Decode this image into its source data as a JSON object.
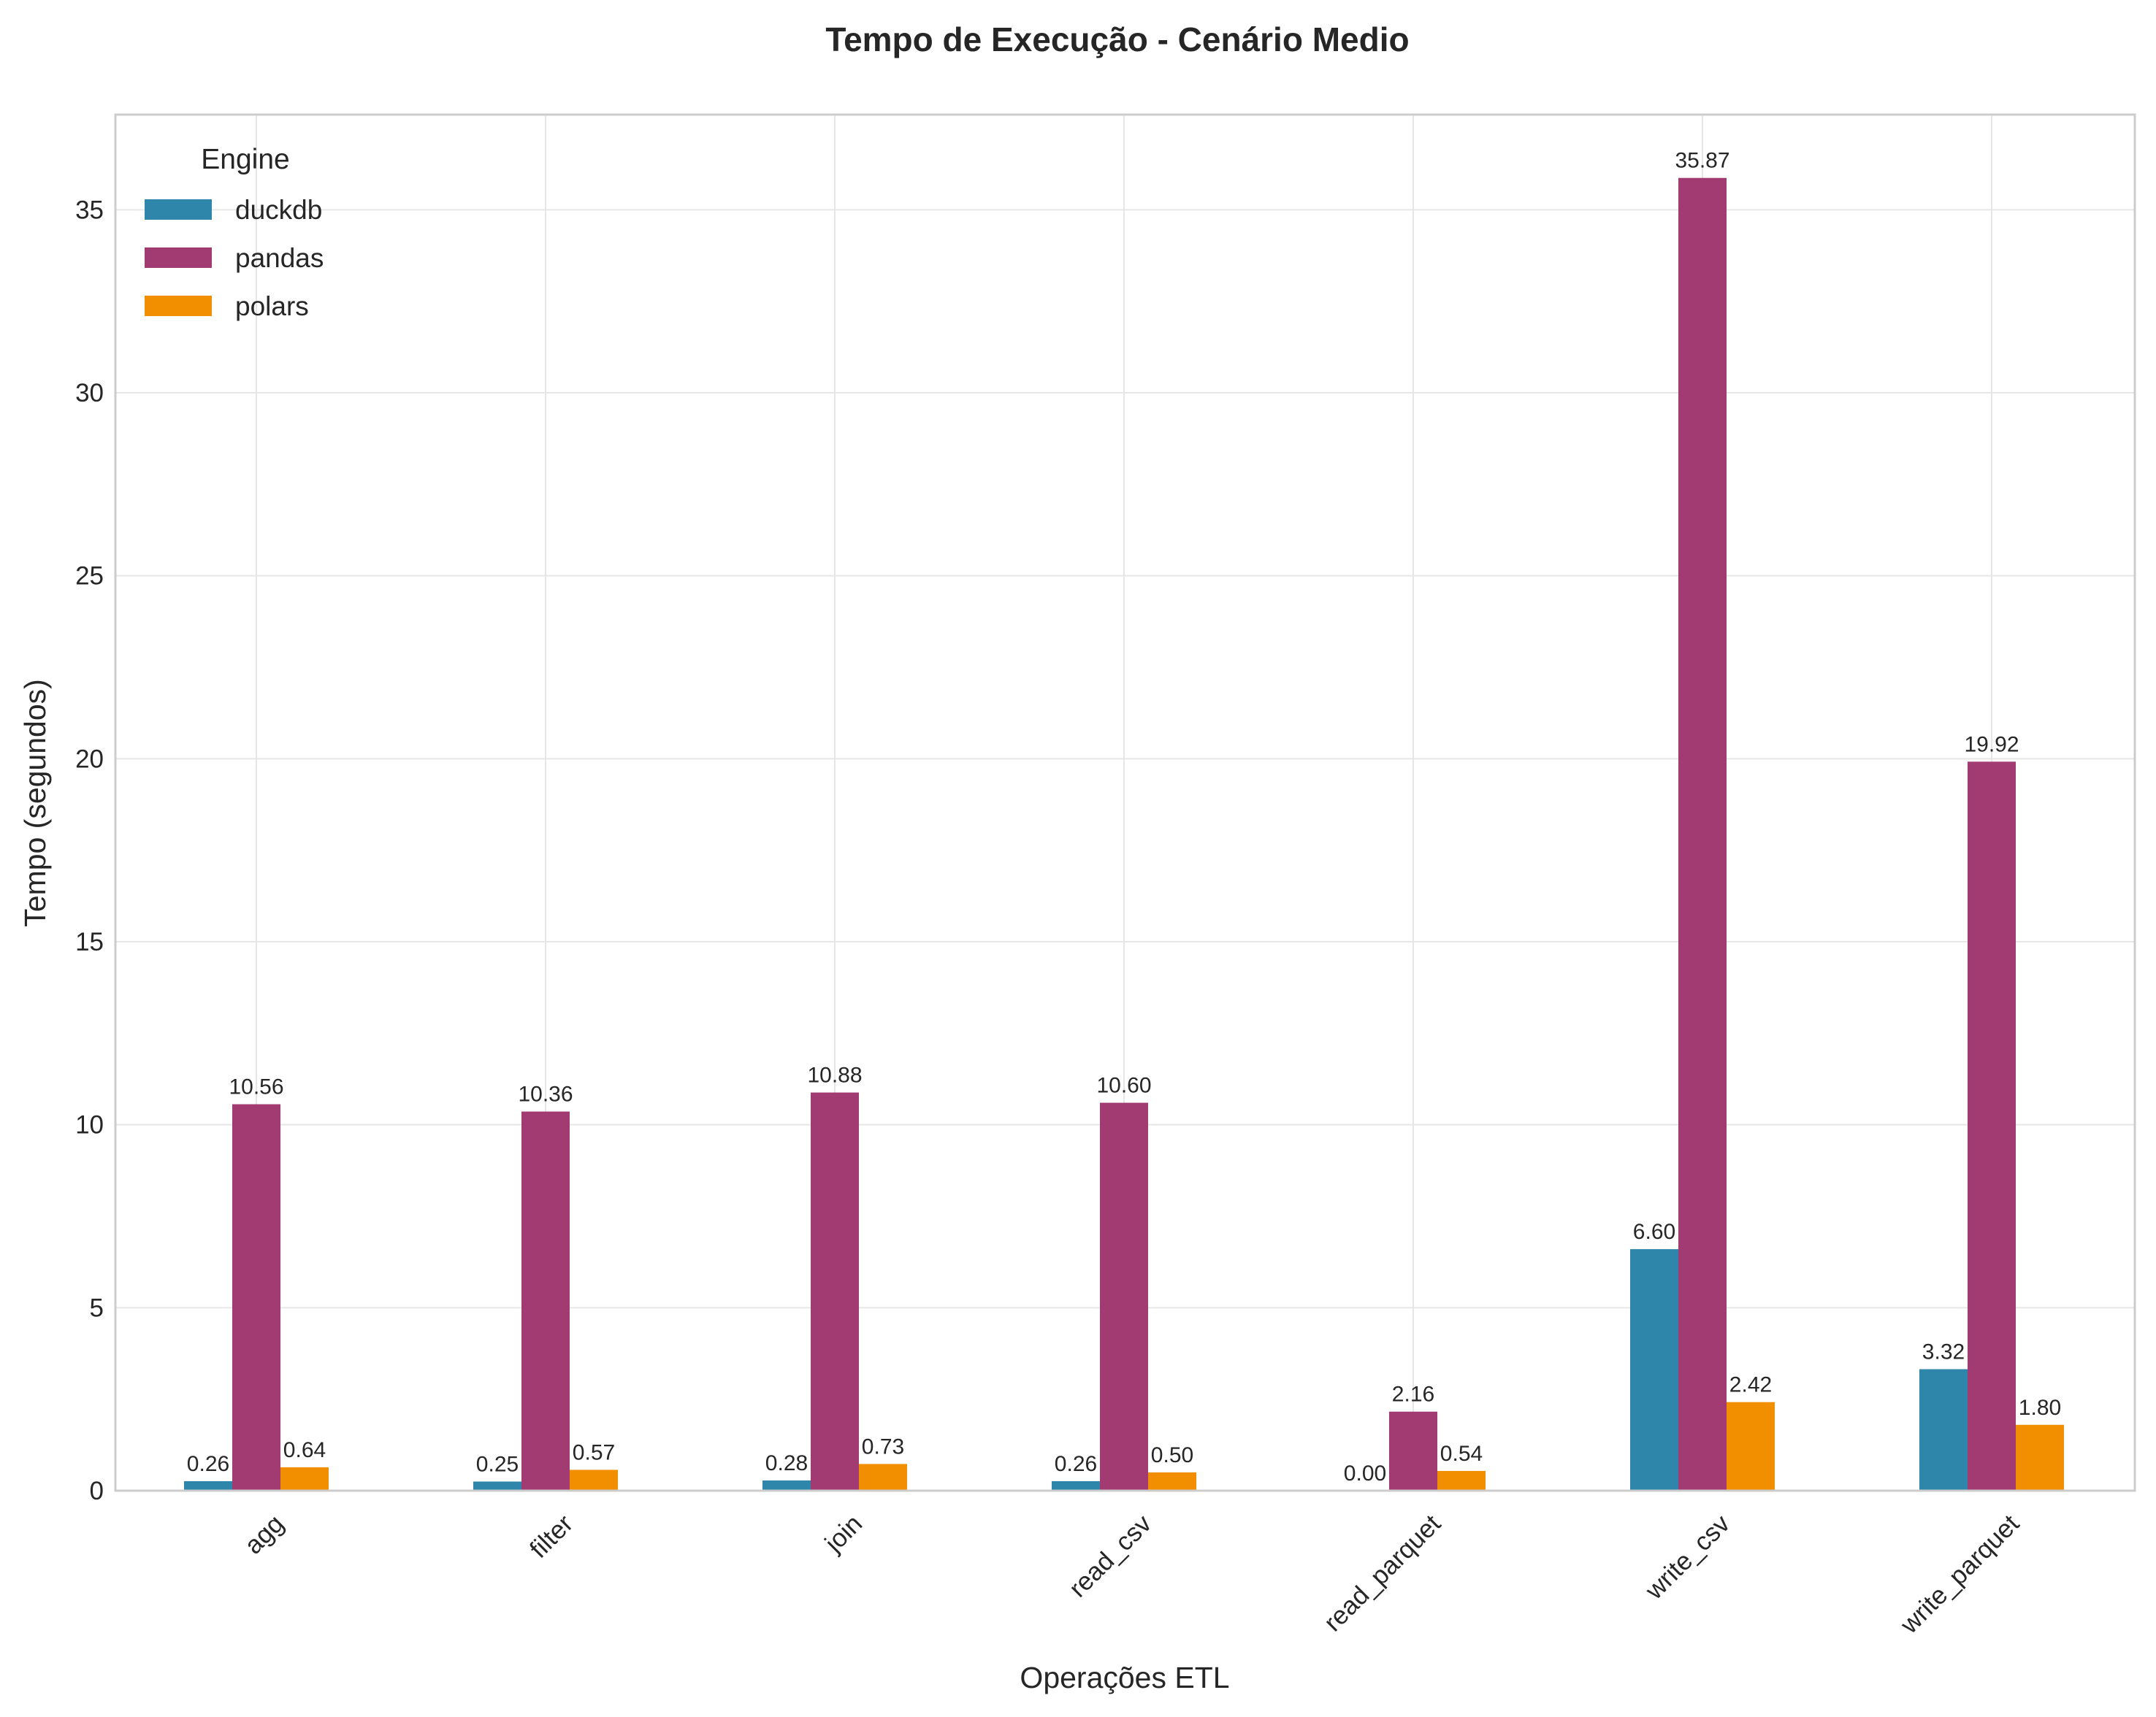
{
  "chart_data": {
    "type": "bar",
    "title": "Tempo de Execução - Cenário Medio",
    "xlabel": "Operações ETL",
    "ylabel": "Tempo (segundos)",
    "categories": [
      "agg",
      "filter",
      "join",
      "read_csv",
      "read_parquet",
      "write_csv",
      "write_parquet"
    ],
    "series": [
      {
        "name": "duckdb",
        "color": "#2E86AB",
        "values": [
          0.26,
          0.25,
          0.28,
          0.26,
          0.0,
          6.6,
          3.32
        ],
        "labels": [
          "0.26",
          "0.25",
          "0.28",
          "0.26",
          "0.00",
          "6.60",
          "3.32"
        ]
      },
      {
        "name": "pandas",
        "color": "#A23B72",
        "values": [
          10.56,
          10.36,
          10.88,
          10.6,
          2.16,
          35.87,
          19.92
        ],
        "labels": [
          "10.56",
          "10.36",
          "10.88",
          "10.60",
          "2.16",
          "35.87",
          "19.92"
        ]
      },
      {
        "name": "polars",
        "color": "#F18F01",
        "values": [
          0.64,
          0.57,
          0.73,
          0.5,
          0.54,
          2.42,
          1.8
        ],
        "labels": [
          "0.64",
          "0.57",
          "0.73",
          "0.50",
          "0.54",
          "2.42",
          "1.80"
        ]
      }
    ],
    "yticks": [
      0,
      5,
      10,
      15,
      20,
      25,
      30,
      35
    ],
    "ylim": [
      0,
      37.6
    ],
    "grid": true,
    "legend": {
      "title": "Engine",
      "placement": "top-left"
    },
    "xtick_rotation": -45
  }
}
